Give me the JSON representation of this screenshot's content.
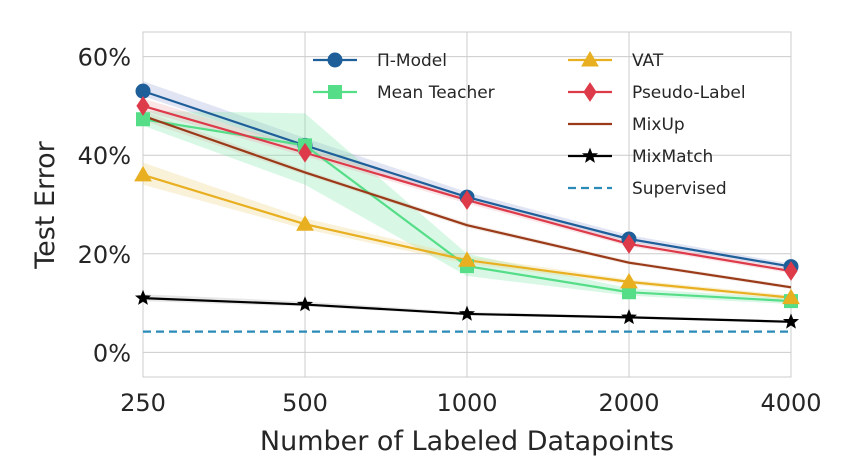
{
  "chart_data": {
    "type": "line",
    "title": "",
    "xlabel": "Number of Labeled Datapoints",
    "ylabel": "Test Error",
    "x": [
      "250",
      "500",
      "1000",
      "2000",
      "4000"
    ],
    "yticks": [
      "0%",
      "20%",
      "40%",
      "60%"
    ],
    "ylim": [
      -5,
      65
    ],
    "grid": true,
    "legend_position": "top-right",
    "series": [
      {
        "name": "Π-Model",
        "color": "#1f5f99",
        "marker": "circle",
        "dash": "solid",
        "values": [
          53.0,
          42.0,
          31.5,
          23.0,
          17.4
        ],
        "band": {
          "lower": [
            52.0,
            41.0,
            30.8,
            22.4,
            16.9
          ],
          "upper": [
            55.0,
            43.5,
            32.5,
            23.8,
            18.0
          ],
          "color": "#9aa6d6"
        }
      },
      {
        "name": "Mean Teacher",
        "color": "#55dd88",
        "marker": "square",
        "dash": "solid",
        "values": [
          47.3,
          42.0,
          17.5,
          12.2,
          10.4
        ],
        "band": {
          "lower": [
            46.0,
            34.0,
            15.5,
            11.5,
            9.8
          ],
          "upper": [
            49.0,
            48.5,
            20.0,
            13.0,
            11.0
          ],
          "color": "#7de8a8"
        }
      },
      {
        "name": "VAT",
        "color": "#e8b020",
        "marker": "triangle",
        "dash": "solid",
        "values": [
          36.0,
          26.0,
          18.7,
          14.3,
          11.1
        ],
        "band": {
          "lower": [
            34.0,
            25.0,
            18.0,
            13.8,
            10.6
          ],
          "upper": [
            38.5,
            27.2,
            19.5,
            14.8,
            11.6
          ],
          "color": "#f0d080"
        }
      },
      {
        "name": "Pseudo-Label",
        "color": "#dd3a4a",
        "marker": "diamond",
        "dash": "solid",
        "values": [
          50.0,
          40.5,
          30.9,
          22.0,
          16.5
        ],
        "band": {
          "lower": [
            49.0,
            39.8,
            30.2,
            21.5,
            16.0
          ],
          "upper": [
            51.5,
            41.5,
            31.5,
            22.6,
            17.0
          ],
          "color": "#f0a8b0"
        }
      },
      {
        "name": "MixUp",
        "color": "#9a3a18",
        "marker": "none",
        "dash": "solid",
        "values": [
          48.0,
          36.5,
          25.8,
          18.2,
          13.2
        ],
        "band": {
          "lower": [
            47.0,
            36.0,
            25.3,
            17.8,
            12.8
          ],
          "upper": [
            49.0,
            37.0,
            26.3,
            18.6,
            13.6
          ],
          "color": "#d8b8a8"
        }
      },
      {
        "name": "MixMatch",
        "color": "#000000",
        "marker": "star",
        "dash": "solid",
        "values": [
          11.0,
          9.7,
          7.8,
          7.1,
          6.2
        ],
        "band": {
          "lower": [
            10.4,
            9.3,
            7.5,
            6.9,
            6.0
          ],
          "upper": [
            11.8,
            10.3,
            8.2,
            7.4,
            6.5
          ],
          "color": "#b0b0b0"
        }
      },
      {
        "name": "Supervised",
        "color": "#2a8ab8",
        "marker": "none",
        "dash": "dashed",
        "values": [
          4.2,
          4.2,
          4.2,
          4.2,
          4.2
        ]
      }
    ]
  }
}
